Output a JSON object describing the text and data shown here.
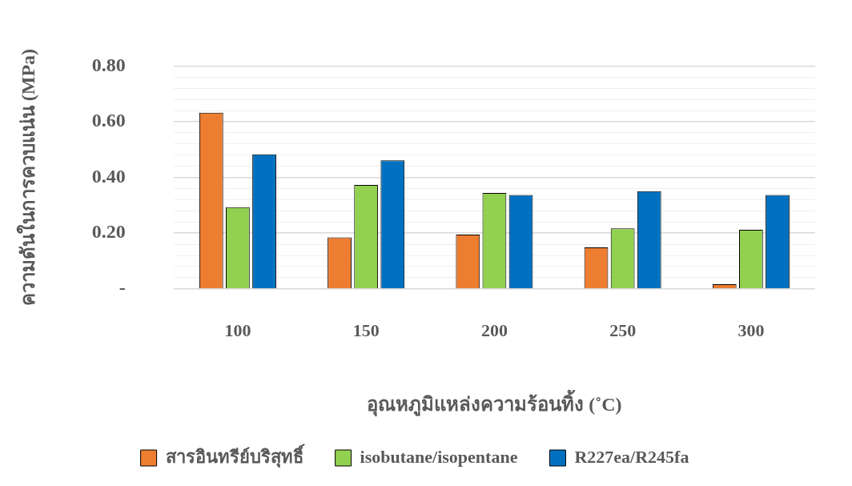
{
  "chart_data": {
    "type": "bar",
    "xlabel": "อุณหภูมิแหล่งความร้อนทิ้ง (˚C)",
    "ylabel": "ความดันในการควบแน่น (MPa)",
    "categories": [
      "100",
      "150",
      "200",
      "250",
      "300"
    ],
    "series": [
      {
        "name": "สารอินทรีย์บริสุทธิ์",
        "color": "#ed7d31",
        "values": [
          0.632,
          0.185,
          0.195,
          0.149,
          0.017
        ]
      },
      {
        "name": "isobutane/isopentane",
        "color": "#92d050",
        "values": [
          0.293,
          0.373,
          0.344,
          0.217,
          0.212
        ]
      },
      {
        "name": "R227ea/R245fa",
        "color": "#0070c0",
        "values": [
          0.483,
          0.461,
          0.337,
          0.351,
          0.337
        ]
      }
    ],
    "ylim": [
      0,
      0.8
    ],
    "yticks": [
      {
        "value": 0,
        "label": "-"
      },
      {
        "value": 0.04,
        "label": null
      },
      {
        "value": 0.08,
        "label": null
      },
      {
        "value": 0.12,
        "label": null
      },
      {
        "value": 0.16,
        "label": null
      },
      {
        "value": 0.2,
        "label": "0.20"
      },
      {
        "value": 0.24,
        "label": null
      },
      {
        "value": 0.28,
        "label": null
      },
      {
        "value": 0.32,
        "label": null
      },
      {
        "value": 0.36,
        "label": null
      },
      {
        "value": 0.4,
        "label": "0.40"
      },
      {
        "value": 0.44,
        "label": null
      },
      {
        "value": 0.48,
        "label": null
      },
      {
        "value": 0.52,
        "label": null
      },
      {
        "value": 0.56,
        "label": null
      },
      {
        "value": 0.6,
        "label": "0.60"
      },
      {
        "value": 0.64,
        "label": null
      },
      {
        "value": 0.68,
        "label": null
      },
      {
        "value": 0.72,
        "label": null
      },
      {
        "value": 0.76,
        "label": null
      },
      {
        "value": 0.8,
        "label": "0.80"
      }
    ],
    "grid": "y",
    "legend": "bottom"
  }
}
